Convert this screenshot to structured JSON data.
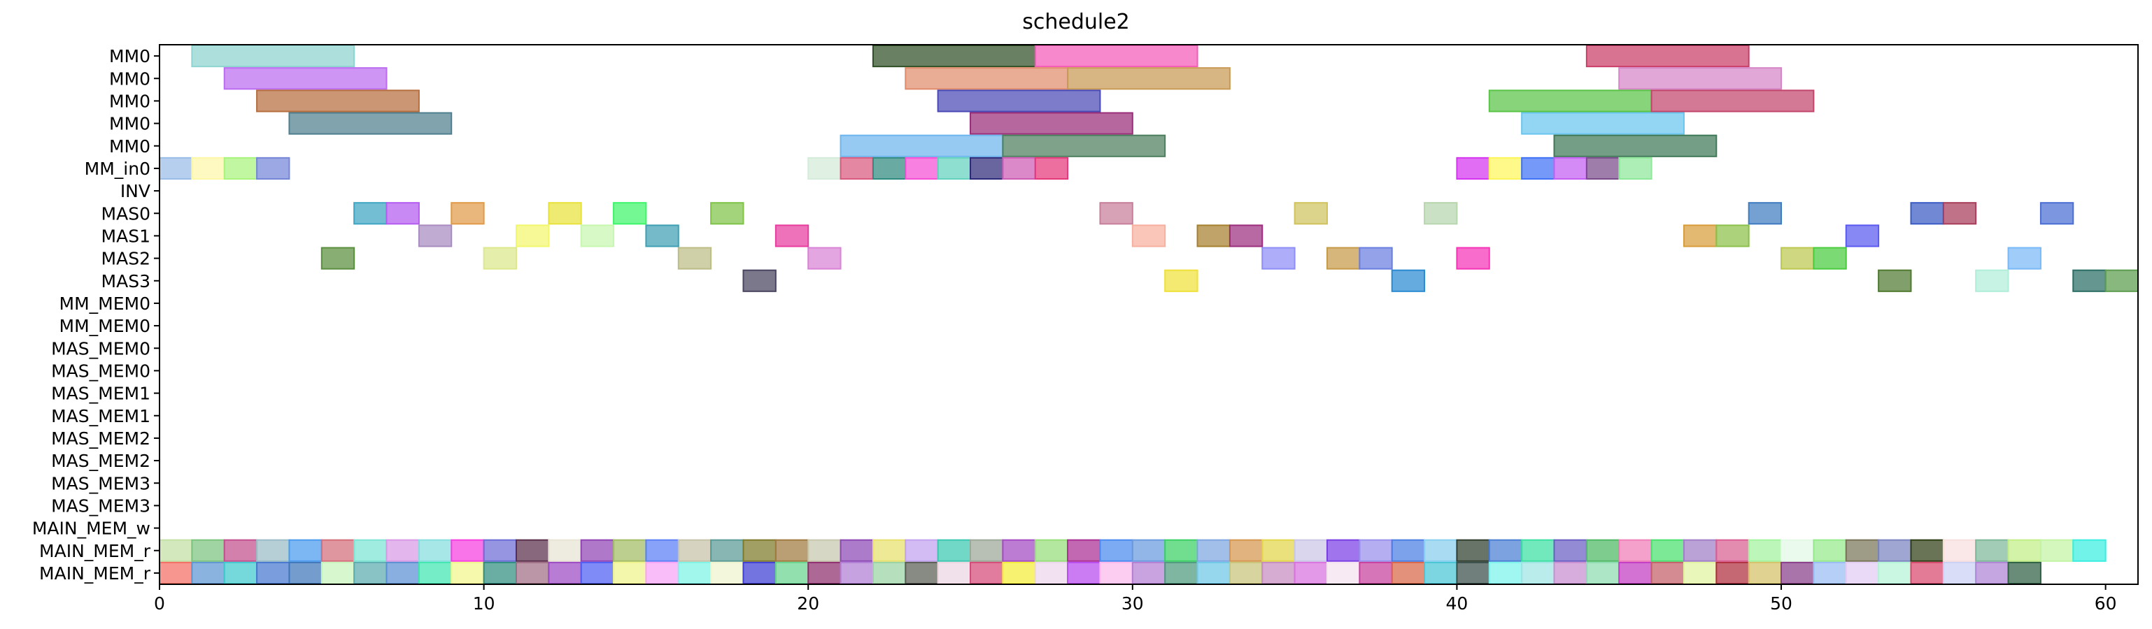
{
  "chart_data": {
    "type": "gantt",
    "title": "schedule2",
    "xlabel": "",
    "ylabel": "",
    "xlim": [
      0,
      61
    ],
    "xticks": [
      0,
      10,
      20,
      30,
      40,
      50,
      60
    ],
    "grid": false,
    "rows": [
      "MM0",
      "MM0",
      "MM0",
      "MM0",
      "MM0",
      "MM_in0",
      "INV",
      "MAS0",
      "MAS1",
      "MAS2",
      "MAS3",
      "MM_MEM0",
      "MM_MEM0",
      "MAS_MEM0",
      "MAS_MEM0",
      "MAS_MEM1",
      "MAS_MEM1",
      "MAS_MEM2",
      "MAS_MEM2",
      "MAS_MEM3",
      "MAS_MEM3",
      "MAIN_MEM_w",
      "MAIN_MEM_r",
      "MAIN_MEM_r"
    ],
    "tasks": [
      {
        "row": 0,
        "start": 1,
        "end": 6,
        "color": "#8ed4d0"
      },
      {
        "row": 0,
        "start": 22,
        "end": 27,
        "color": "#2f4f25"
      },
      {
        "row": 0,
        "start": 27,
        "end": 32,
        "color": "#f55ab8"
      },
      {
        "row": 0,
        "start": 44,
        "end": 49,
        "color": "#c93d68"
      },
      {
        "row": 1,
        "start": 2,
        "end": 7,
        "color": "#bb6cf1"
      },
      {
        "row": 1,
        "start": 23,
        "end": 28,
        "color": "#e08c6c"
      },
      {
        "row": 1,
        "start": 28,
        "end": 33,
        "color": "#c99a55"
      },
      {
        "row": 1,
        "start": 45,
        "end": 50,
        "color": "#d685c6"
      },
      {
        "row": 2,
        "start": 3,
        "end": 8,
        "color": "#b76e3e"
      },
      {
        "row": 2,
        "start": 24,
        "end": 29,
        "color": "#4a4ab5"
      },
      {
        "row": 2,
        "start": 41,
        "end": 46,
        "color": "#5ac447"
      },
      {
        "row": 2,
        "start": 46,
        "end": 51,
        "color": "#c2456c"
      },
      {
        "row": 3,
        "start": 4,
        "end": 9,
        "color": "#4f7f8f"
      },
      {
        "row": 3,
        "start": 25,
        "end": 30,
        "color": "#9a2e78"
      },
      {
        "row": 3,
        "start": 42,
        "end": 47,
        "color": "#6ac6ee"
      },
      {
        "row": 4,
        "start": 21,
        "end": 26,
        "color": "#6db6ee"
      },
      {
        "row": 4,
        "start": 26,
        "end": 31,
        "color": "#4c7f5d"
      },
      {
        "row": 4,
        "start": 43,
        "end": 48,
        "color": "#3f7a58"
      },
      {
        "row": 5,
        "start": 0,
        "end": 1,
        "color": "#9abde8"
      },
      {
        "row": 5,
        "start": 1,
        "end": 2,
        "color": "#fdf7a8"
      },
      {
        "row": 5,
        "start": 2,
        "end": 3,
        "color": "#a8f47c"
      },
      {
        "row": 5,
        "start": 3,
        "end": 4,
        "color": "#7586d9"
      },
      {
        "row": 5,
        "start": 20,
        "end": 21,
        "color": "#d4ecd9"
      },
      {
        "row": 5,
        "start": 21,
        "end": 22,
        "color": "#d9597f"
      },
      {
        "row": 5,
        "start": 22,
        "end": 23,
        "color": "#2f8a80"
      },
      {
        "row": 5,
        "start": 23,
        "end": 24,
        "color": "#f54fd6"
      },
      {
        "row": 5,
        "start": 24,
        "end": 25,
        "color": "#62d2be"
      },
      {
        "row": 5,
        "start": 25,
        "end": 26,
        "color": "#2e2a7a"
      },
      {
        "row": 5,
        "start": 26,
        "end": 27,
        "color": "#cd5cb4"
      },
      {
        "row": 5,
        "start": 27,
        "end": 28,
        "color": "#e5387a"
      },
      {
        "row": 5,
        "start": 40,
        "end": 41,
        "color": "#d535f0"
      },
      {
        "row": 5,
        "start": 41,
        "end": 42,
        "color": "#fdf65a"
      },
      {
        "row": 5,
        "start": 42,
        "end": 43,
        "color": "#3f72f6"
      },
      {
        "row": 5,
        "start": 43,
        "end": 44,
        "color": "#c45ef2"
      },
      {
        "row": 5,
        "start": 44,
        "end": 45,
        "color": "#7a4b8a"
      },
      {
        "row": 5,
        "start": 45,
        "end": 46,
        "color": "#8ee89a"
      },
      {
        "row": 7,
        "start": 6,
        "end": 7,
        "color": "#3ea5c2"
      },
      {
        "row": 7,
        "start": 7,
        "end": 8,
        "color": "#b45cf0"
      },
      {
        "row": 7,
        "start": 9,
        "end": 10,
        "color": "#e09a48"
      },
      {
        "row": 7,
        "start": 12,
        "end": 13,
        "color": "#e8e23c"
      },
      {
        "row": 7,
        "start": 14,
        "end": 15,
        "color": "#3ef56a"
      },
      {
        "row": 7,
        "start": 17,
        "end": 18,
        "color": "#7fc448"
      },
      {
        "row": 7,
        "start": 29,
        "end": 30,
        "color": "#c77e9a"
      },
      {
        "row": 7,
        "start": 35,
        "end": 36,
        "color": "#d0c35e"
      },
      {
        "row": 7,
        "start": 39,
        "end": 40,
        "color": "#b7d6ae"
      },
      {
        "row": 7,
        "start": 49,
        "end": 50,
        "color": "#3f7bc0"
      },
      {
        "row": 7,
        "start": 54,
        "end": 55,
        "color": "#3a5cc4"
      },
      {
        "row": 7,
        "start": 55,
        "end": 56,
        "color": "#a83d5a"
      },
      {
        "row": 7,
        "start": 58,
        "end": 59,
        "color": "#4a6ed4"
      },
      {
        "row": 8,
        "start": 8,
        "end": 9,
        "color": "#a88cc0"
      },
      {
        "row": 8,
        "start": 11,
        "end": 12,
        "color": "#f2f76c"
      },
      {
        "row": 8,
        "start": 13,
        "end": 14,
        "color": "#c8f7b0"
      },
      {
        "row": 8,
        "start": 15,
        "end": 16,
        "color": "#3ea0b4"
      },
      {
        "row": 8,
        "start": 19,
        "end": 20,
        "color": "#e83c9e"
      },
      {
        "row": 8,
        "start": 30,
        "end": 31,
        "color": "#f7b09e"
      },
      {
        "row": 8,
        "start": 32,
        "end": 33,
        "color": "#a6802e"
      },
      {
        "row": 8,
        "start": 33,
        "end": 34,
        "color": "#9c2e7e"
      },
      {
        "row": 8,
        "start": 47,
        "end": 48,
        "color": "#d89c3a"
      },
      {
        "row": 8,
        "start": 48,
        "end": 49,
        "color": "#8cc04a"
      },
      {
        "row": 8,
        "start": 52,
        "end": 53,
        "color": "#5a5af0"
      },
      {
        "row": 9,
        "start": 5,
        "end": 6,
        "color": "#5a8f3e"
      },
      {
        "row": 9,
        "start": 10,
        "end": 11,
        "color": "#dde88c"
      },
      {
        "row": 9,
        "start": 16,
        "end": 17,
        "color": "#bcbc86"
      },
      {
        "row": 9,
        "start": 20,
        "end": 21,
        "color": "#d884d6"
      },
      {
        "row": 9,
        "start": 34,
        "end": 35,
        "color": "#8e8ef7"
      },
      {
        "row": 9,
        "start": 36,
        "end": 37,
        "color": "#c69a48"
      },
      {
        "row": 9,
        "start": 37,
        "end": 38,
        "color": "#6a7ee0"
      },
      {
        "row": 9,
        "start": 40,
        "end": 41,
        "color": "#f534b8"
      },
      {
        "row": 9,
        "start": 50,
        "end": 51,
        "color": "#bcc850"
      },
      {
        "row": 9,
        "start": 51,
        "end": 52,
        "color": "#4acc3e"
      },
      {
        "row": 9,
        "start": 57,
        "end": 58,
        "color": "#7ab9f7"
      },
      {
        "row": 10,
        "start": 18,
        "end": 19,
        "color": "#4a4460"
      },
      {
        "row": 10,
        "start": 31,
        "end": 32,
        "color": "#f0e03a"
      },
      {
        "row": 10,
        "start": 38,
        "end": 39,
        "color": "#2a8ad2"
      },
      {
        "row": 10,
        "start": 53,
        "end": 54,
        "color": "#4f7a30"
      },
      {
        "row": 10,
        "start": 56,
        "end": 57,
        "color": "#b0eed8"
      },
      {
        "row": 10,
        "start": 59,
        "end": 60,
        "color": "#2a6e64"
      },
      {
        "row": 10,
        "start": 60,
        "end": 61,
        "color": "#5c9c4e"
      }
    ],
    "main_mem_r_colors": [
      [
        "#c2e0a4",
        "#7cc47e",
        "#c44f8e",
        "#9abcc6",
        "#4a9aee",
        "#d46e7a",
        "#7de4d4",
        "#d89ae6",
        "#86dede",
        "#f73ee0",
        "#6c6cd6",
        "#5a2e4a",
        "#e8e4d4",
        "#9044b4",
        "#a2bc64",
        "#5c7ef6",
        "#c6c2a8",
        "#5a9a96",
        "#7e7a2a",
        "#a07a3e",
        "#c8c8ae",
        "#8c48b4",
        "#e8e06c",
        "#c2a2ee",
        "#3ac8b0",
        "#9ca898",
        "#a44ac4",
        "#96de7a",
        "#aa2e94",
        "#4a8af0",
        "#6a9ae0",
        "#3ad064",
        "#7ea6e2",
        "#d6964e",
        "#e2d64a",
        "#cac6e6",
        "#7a3ee4",
        "#9890ec",
        "#4a7ee4",
        "#88cfef",
        "#2f3e2e",
        "#4a7ed4",
        "#3ae0a2",
        "#6a5ec4",
        "#4eb864",
        "#f07eb8",
        "#4ae06e",
        "#a07ec8",
        "#da5e92",
        "#a2f49e",
        "#e2fae6",
        "#95ea8c",
        "#787458",
        "#7c84c0",
        "#2e3e14",
        "#f8dede",
        "#7eb89a",
        "#c2ee86",
        "#c2f4a4",
        "#3aeee0"
      ],
      [
        "#f36e62",
        "#5e96d2",
        "#40cacf",
        "#4677d0",
        "#3e76ba",
        "#c8f4bc",
        "#5cacb0",
        "#5a90d2",
        "#40e6b0",
        "#f2f68c",
        "#2f8e80",
        "#a06e84",
        "#9c4ac4",
        "#4e5ef4",
        "#eef48a",
        "#f7a4f6",
        "#7ef4e6",
        "#eef4ce",
        "#3e3ed6",
        "#66d48e",
        "#8e2e6e",
        "#b07ed4",
        "#9ad2a4",
        "#5a5e54",
        "#ecd6e2",
        "#d64a78",
        "#f4ee3a",
        "#ecd6ec",
        "#b84aee",
        "#fcb8ec",
        "#b47ed4",
        "#4e9a7e",
        "#6ec8e8",
        "#c8c47a",
        "#c68cc0",
        "#d872de",
        "#f4e2ee",
        "#c8409e",
        "#da6648",
        "#48c6d6",
        "#3a4e4a",
        "#7cf4ec",
        "#9ee4e2",
        "#c88ed0",
        "#8cdcb0",
        "#c43cc4",
        "#c46068",
        "#e2f4a0",
        "#b02e3e",
        "#d4c268",
        "#883e88",
        "#9abcf4",
        "#e2ccf4",
        "#b4f4d6",
        "#d8486e",
        "#cad0f4",
        "#ae84d6",
        "#2e6044"
      ]
    ]
  }
}
